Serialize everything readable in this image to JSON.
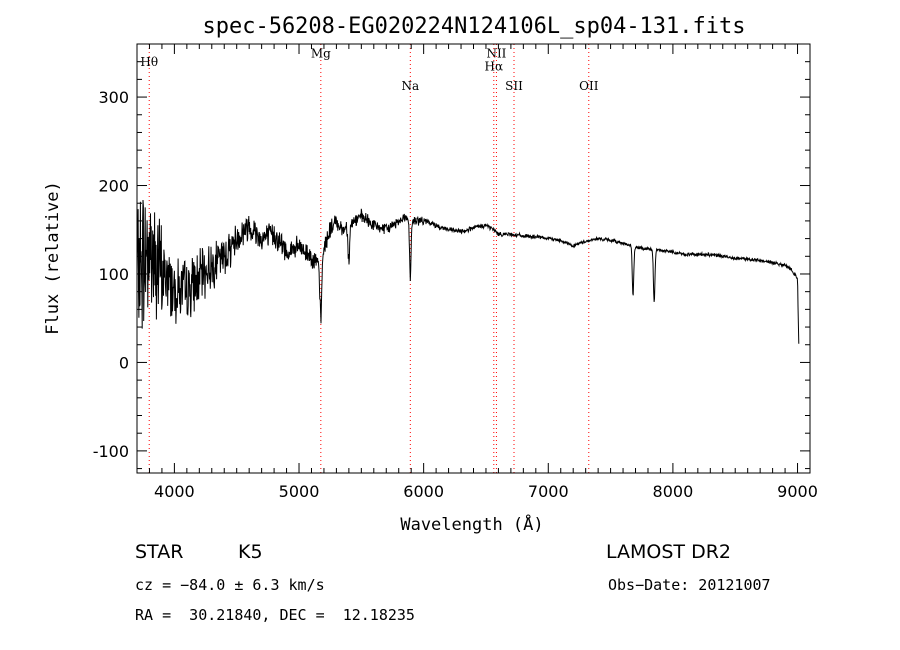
{
  "chart_data": {
    "type": "line",
    "title": "spec-56208-EG020224N124106L_sp04-131.fits",
    "xlabel": "Wavelength (Å)",
    "ylabel": "Flux (relative)",
    "xlim": [
      3700,
      9100
    ],
    "ylim": [
      -125,
      360
    ],
    "x_ticks": [
      4000,
      5000,
      6000,
      7000,
      8000,
      9000
    ],
    "y_ticks": [
      -100,
      0,
      100,
      200,
      300
    ],
    "grid": false,
    "line_color": "#000000",
    "marker_color": "#ff0000",
    "lines": [
      {
        "label": "Hθ",
        "wavelength": 3798,
        "label_y": 335
      },
      {
        "label": "Mg",
        "wavelength": 5175,
        "label_y": 345
      },
      {
        "label": "Na",
        "wavelength": 5893,
        "label_y": 308
      },
      {
        "label": "NII",
        "wavelength": 6584,
        "label_y": 345
      },
      {
        "label": "Hα",
        "wavelength": 6563,
        "label_y": 330
      },
      {
        "label": "SII",
        "wavelength": 6725,
        "label_y": 308
      },
      {
        "label": "OII",
        "wavelength": 7325,
        "label_y": 308
      }
    ],
    "anchors": {
      "x": [
        3700,
        3760,
        3800,
        3850,
        3900,
        4000,
        4100,
        4200,
        4300,
        4400,
        4500,
        4600,
        4700,
        4800,
        4900,
        5000,
        5100,
        5150,
        5175,
        5200,
        5250,
        5300,
        5350,
        5400,
        5500,
        5600,
        5700,
        5800,
        5850,
        5893,
        5950,
        6000,
        6100,
        6200,
        6300,
        6400,
        6500,
        6563,
        6600,
        6700,
        6800,
        6900,
        7000,
        7100,
        7200,
        7300,
        7400,
        7500,
        7600,
        7700,
        7800,
        7900,
        8000,
        8100,
        8200,
        8300,
        8400,
        8500,
        8600,
        8700,
        8800,
        8900,
        8950,
        9000,
        9010
      ],
      "y": [
        100,
        120,
        130,
        110,
        100,
        85,
        80,
        95,
        110,
        120,
        140,
        155,
        140,
        145,
        125,
        130,
        120,
        110,
        90,
        130,
        150,
        160,
        150,
        155,
        165,
        155,
        150,
        160,
        165,
        160,
        160,
        160,
        155,
        150,
        148,
        152,
        155,
        150,
        145,
        145,
        143,
        142,
        140,
        138,
        132,
        137,
        140,
        138,
        135,
        130,
        128,
        127,
        125,
        122,
        122,
        122,
        120,
        118,
        117,
        115,
        113,
        110,
        105,
        95,
        20
      ]
    },
    "noise": {
      "x": [
        3700,
        3800,
        3900,
        4000,
        4300,
        4600,
        5000,
        5500,
        5900,
        6100,
        7000,
        9000
      ],
      "amplitude": [
        120,
        140,
        90,
        60,
        40,
        25,
        20,
        12,
        8,
        5,
        3,
        3
      ]
    },
    "absorption_features": [
      {
        "x": 5175,
        "depth": 45
      },
      {
        "x": 5400,
        "depth": 40
      },
      {
        "x": 5893,
        "depth": 65
      },
      {
        "x": 7680,
        "depth": 55
      },
      {
        "x": 7850,
        "depth": 60
      }
    ]
  },
  "info": {
    "object_type": "STAR",
    "subclass": "K5",
    "survey": "LAMOST DR2",
    "cz": "cz = −84.0 ± 6.3 km/s",
    "obs_date": "Obs−Date: 20121007",
    "coords": "RA =  30.21840, DEC =  12.18235"
  }
}
